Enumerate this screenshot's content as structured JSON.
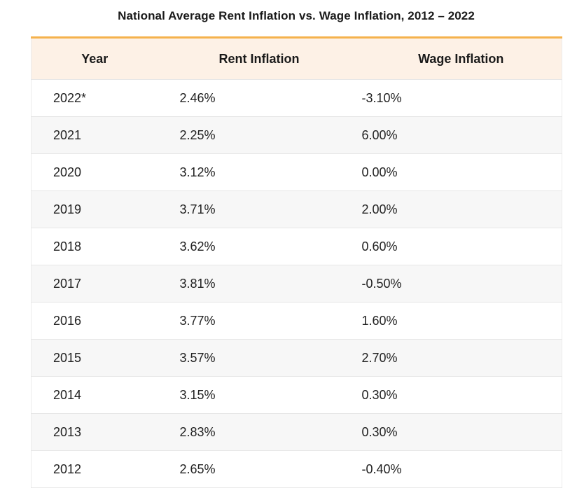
{
  "chart_data": {
    "type": "table",
    "title": "National Average Rent Inflation vs. Wage Inflation, 2012 – 2022",
    "columns": [
      "Year",
      "Rent Inflation",
      "Wage Inflation"
    ],
    "rows": [
      [
        "2022*",
        "2.46%",
        "-3.10%"
      ],
      [
        "2021",
        "2.25%",
        "6.00%"
      ],
      [
        "2020",
        "3.12%",
        "0.00%"
      ],
      [
        "2019",
        "3.71%",
        "2.00%"
      ],
      [
        "2018",
        "3.62%",
        "0.60%"
      ],
      [
        "2017",
        "3.81%",
        "-0.50%"
      ],
      [
        "2016",
        "3.77%",
        "1.60%"
      ],
      [
        "2015",
        "3.57%",
        "2.70%"
      ],
      [
        "2014",
        "3.15%",
        "0.30%"
      ],
      [
        "2013",
        "2.83%",
        "0.30%"
      ],
      [
        "2012",
        "2.65%",
        "-0.40%"
      ]
    ],
    "colors": {
      "header_bg": "#fdf1e6",
      "header_accent": "#f5b24c",
      "stripe": "#f7f7f7"
    }
  }
}
